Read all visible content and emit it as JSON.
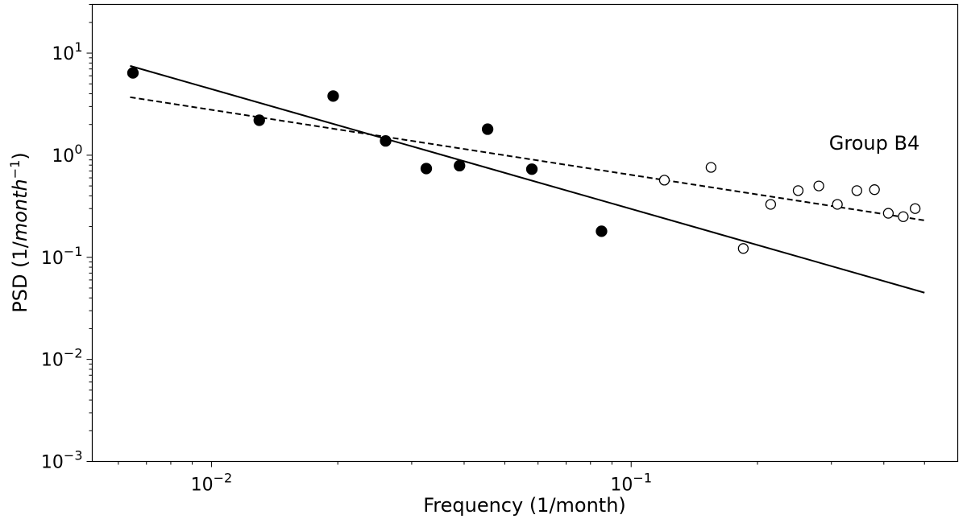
{
  "chart_data": {
    "type": "scatter",
    "xlabel": "Frequency (1/month)",
    "ylabel_prefix": "PSD (1/",
    "ylabel_italic": "month",
    "ylabel_sup": "−1",
    "ylabel_suffix": ")",
    "annotation": "Group B4",
    "xscale": "log",
    "yscale": "log",
    "xlim": [
      0.0052,
      0.6
    ],
    "ylim": [
      0.001,
      30
    ],
    "grid": false,
    "x_ticks": [
      {
        "value": 0.01,
        "base": "10",
        "exp": "−2"
      },
      {
        "value": 0.1,
        "base": "10",
        "exp": "−1"
      }
    ],
    "y_ticks": [
      {
        "value": 10,
        "base": "10",
        "exp": "1"
      },
      {
        "value": 1,
        "base": "10",
        "exp": "0"
      },
      {
        "value": 0.1,
        "base": "10",
        "exp": "−1"
      },
      {
        "value": 0.01,
        "base": "10",
        "exp": "−2"
      },
      {
        "value": 0.001,
        "base": "10",
        "exp": "−3"
      }
    ],
    "series": [
      {
        "style": "filled-circle",
        "color": "#000000",
        "x": [
          0.0065,
          0.013,
          0.0195,
          0.026,
          0.0325,
          0.039,
          0.0455,
          0.058,
          0.085
        ],
        "y": [
          6.4,
          2.2,
          3.8,
          1.38,
          0.74,
          0.79,
          1.8,
          0.73,
          0.18
        ]
      },
      {
        "style": "open-circle",
        "color": "#000000",
        "x": [
          0.12,
          0.155,
          0.185,
          0.215,
          0.25,
          0.28,
          0.31,
          0.345,
          0.38,
          0.41,
          0.445,
          0.475
        ],
        "y": [
          0.57,
          0.76,
          0.122,
          0.33,
          0.45,
          0.5,
          0.33,
          0.45,
          0.46,
          0.27,
          0.25,
          0.3
        ]
      }
    ],
    "fit_lines": [
      {
        "style": "solid",
        "x": [
          0.0064,
          0.5
        ],
        "y": [
          7.5,
          0.045
        ]
      },
      {
        "style": "dashed",
        "x": [
          0.0064,
          0.5
        ],
        "y": [
          3.7,
          0.23
        ]
      }
    ]
  }
}
